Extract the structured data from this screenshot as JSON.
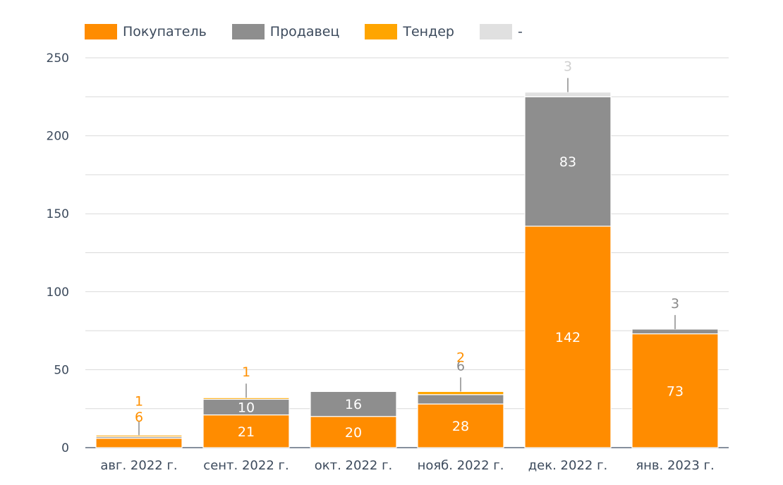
{
  "chart_data": {
    "type": "bar",
    "stacked": true,
    "categories": [
      "авг. 2022 г.",
      "сент. 2022 г.",
      "окт. 2022 г.",
      "нояб. 2022 г.",
      "дек. 2022 г.",
      "янв. 2023 г."
    ],
    "series": [
      {
        "name": "Покупатель",
        "color": "#ff8c00",
        "values": [
          6,
          21,
          20,
          28,
          142,
          73
        ],
        "labels": [
          "6",
          "21",
          "20",
          "28",
          "142",
          "73"
        ]
      },
      {
        "name": "Продавец",
        "color": "#8e8e8e",
        "values": [
          1,
          10,
          16,
          6,
          83,
          3
        ],
        "labels": [
          "",
          "10",
          "16",
          "6",
          "83",
          "3"
        ]
      },
      {
        "name": "Тендер",
        "color": "#ffa500",
        "values": [
          1,
          1,
          0,
          2,
          0,
          0
        ],
        "labels": [
          "1",
          "1",
          "",
          "2",
          "",
          ""
        ]
      },
      {
        "name": "-",
        "color": "#e0e0e0",
        "values": [
          0,
          0,
          0,
          0,
          3,
          0
        ],
        "labels": [
          "",
          "",
          "",
          "",
          "3",
          ""
        ]
      }
    ],
    "yticks": [
      "0",
      "50",
      "100",
      "150",
      "200",
      "250"
    ],
    "ylim": [
      0,
      250
    ],
    "grid": true,
    "legend_position": "top-left"
  }
}
